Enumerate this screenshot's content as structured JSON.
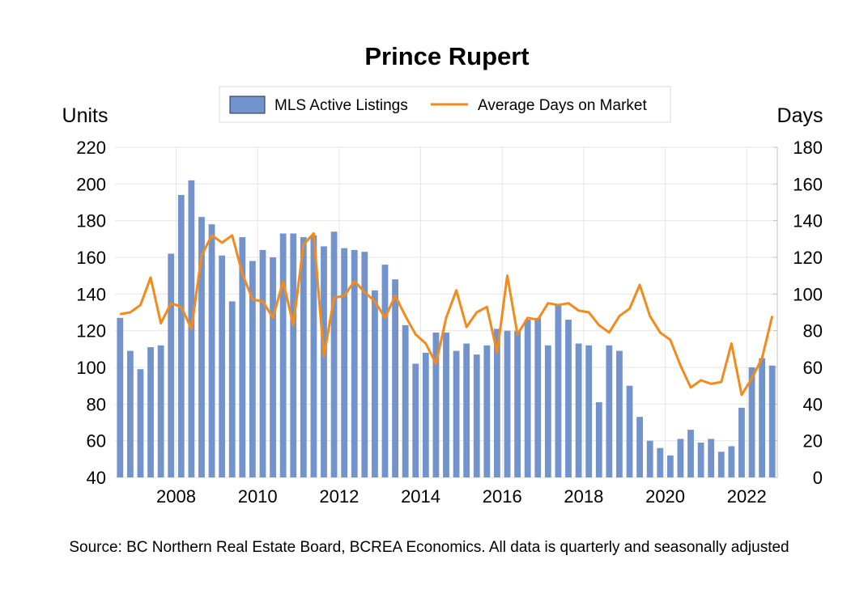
{
  "chart_data": {
    "type": "bar+line",
    "title": "Prince Rupert",
    "y_left_label": "Units",
    "y_right_label": "Days",
    "y_left_lim": [
      40,
      220
    ],
    "y_left_ticks": [
      "40",
      "60",
      "80",
      "100",
      "120",
      "140",
      "160",
      "180",
      "200",
      "220"
    ],
    "y_right_lim": [
      0,
      180
    ],
    "y_right_ticks": [
      "0",
      "20",
      "40",
      "60",
      "80",
      "100",
      "120",
      "140",
      "160",
      "180"
    ],
    "x_tick_labels": [
      "2008",
      "2010",
      "2012",
      "2014",
      "2016",
      "2018",
      "2020",
      "2022"
    ],
    "x_tick_years": [
      2008,
      2010,
      2012,
      2014,
      2016,
      2018,
      2020,
      2022
    ],
    "quarters": [
      "2006Q3",
      "2006Q4",
      "2007Q1",
      "2007Q2",
      "2007Q3",
      "2007Q4",
      "2008Q1",
      "2008Q2",
      "2008Q3",
      "2008Q4",
      "2009Q1",
      "2009Q2",
      "2009Q3",
      "2009Q4",
      "2010Q1",
      "2010Q2",
      "2010Q3",
      "2010Q4",
      "2011Q1",
      "2011Q2",
      "2011Q3",
      "2011Q4",
      "2012Q1",
      "2012Q2",
      "2012Q3",
      "2012Q4",
      "2013Q1",
      "2013Q2",
      "2013Q3",
      "2013Q4",
      "2014Q1",
      "2014Q2",
      "2014Q3",
      "2014Q4",
      "2015Q1",
      "2015Q2",
      "2015Q3",
      "2015Q4",
      "2016Q1",
      "2016Q2",
      "2016Q3",
      "2016Q4",
      "2017Q1",
      "2017Q2",
      "2017Q3",
      "2017Q4",
      "2018Q1",
      "2018Q2",
      "2018Q3",
      "2018Q4",
      "2019Q1",
      "2019Q2",
      "2019Q3",
      "2019Q4",
      "2020Q1",
      "2020Q2",
      "2020Q3",
      "2020Q4",
      "2021Q1",
      "2021Q2",
      "2021Q3",
      "2021Q4",
      "2022Q1",
      "2022Q2",
      "2022Q3"
    ],
    "grid": true,
    "legend_position": "top-center",
    "series": [
      {
        "name": "MLS Active Listings",
        "type": "bar",
        "axis": "left",
        "color": "#7393cc",
        "values": [
          127,
          109,
          99,
          111,
          112,
          162,
          194,
          202,
          182,
          178,
          161,
          136,
          171,
          158,
          164,
          160,
          173,
          173,
          171,
          172,
          166,
          174,
          165,
          164,
          163,
          142,
          156,
          148,
          123,
          102,
          108,
          119,
          119,
          109,
          113,
          107,
          112,
          121,
          120,
          120,
          126,
          127,
          112,
          134,
          126,
          113,
          112,
          81,
          112,
          109,
          90,
          73,
          60,
          56,
          52,
          61,
          66,
          59,
          61,
          54,
          57,
          78,
          100,
          105,
          101
        ]
      },
      {
        "name": "Average Days on Market",
        "type": "line",
        "axis": "right",
        "color": "#f28a1c",
        "values": [
          89,
          90,
          94,
          109,
          84,
          95,
          93,
          81,
          121,
          132,
          128,
          132,
          111,
          97,
          96,
          87,
          107,
          83,
          127,
          133,
          66,
          98,
          99,
          107,
          101,
          96,
          87,
          99,
          88,
          78,
          73,
          62,
          87,
          102,
          82,
          90,
          93,
          68,
          110,
          78,
          87,
          86,
          95,
          94,
          95,
          91,
          90,
          83,
          79,
          88,
          92,
          105,
          88,
          79,
          75,
          61,
          49,
          53,
          51,
          52,
          73,
          45,
          54,
          65,
          88
        ]
      }
    ],
    "source_note": "Source: BC Northern Real Estate Board, BCREA Economics. All data is quarterly and seasonally adjusted"
  }
}
